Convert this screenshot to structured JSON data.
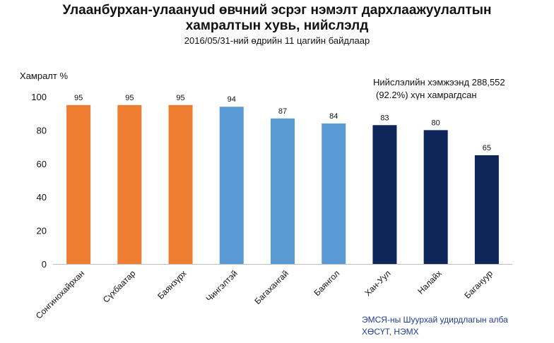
{
  "title_line1": "Улаанбурхан-улаануud өвчний эсрэг нэмэлт дархлаажуулалтын",
  "title_line2": "хамралтын хувь, нийслэлд",
  "subtitle": "2016/05/31-ний өдрийн 11 цагийн байдлаар",
  "note_line1": "Нийслэлийн хэмжээнд 288,552",
  "note_line2": "(92.2%) хүн хамрагдсан",
  "source_line1": "ЭМСЯ-ны Шуурхай удирдлагын алба",
  "source_line2": "ХӨСҮТ, НЭМХ",
  "chart_data": {
    "type": "bar",
    "ylabel": "Хамралт %",
    "ylim": [
      0,
      100
    ],
    "yticks": [
      0,
      20,
      40,
      60,
      80,
      100
    ],
    "grid": false,
    "categories": [
      "Сонгинохайрхан",
      "Сүхбаатар",
      "Баянзүрх",
      "Чингэлтэй",
      "Багахангай",
      "Баянгол",
      "Хан-Уул",
      "Налайх",
      "Багануур"
    ],
    "values": [
      95,
      95,
      95,
      94,
      87,
      84,
      83,
      80,
      65
    ],
    "colors": [
      "#ed7d31",
      "#ed7d31",
      "#ed7d31",
      "#5b9bd5",
      "#5b9bd5",
      "#5b9bd5",
      "#0d2559",
      "#0d2559",
      "#0d2559"
    ]
  }
}
